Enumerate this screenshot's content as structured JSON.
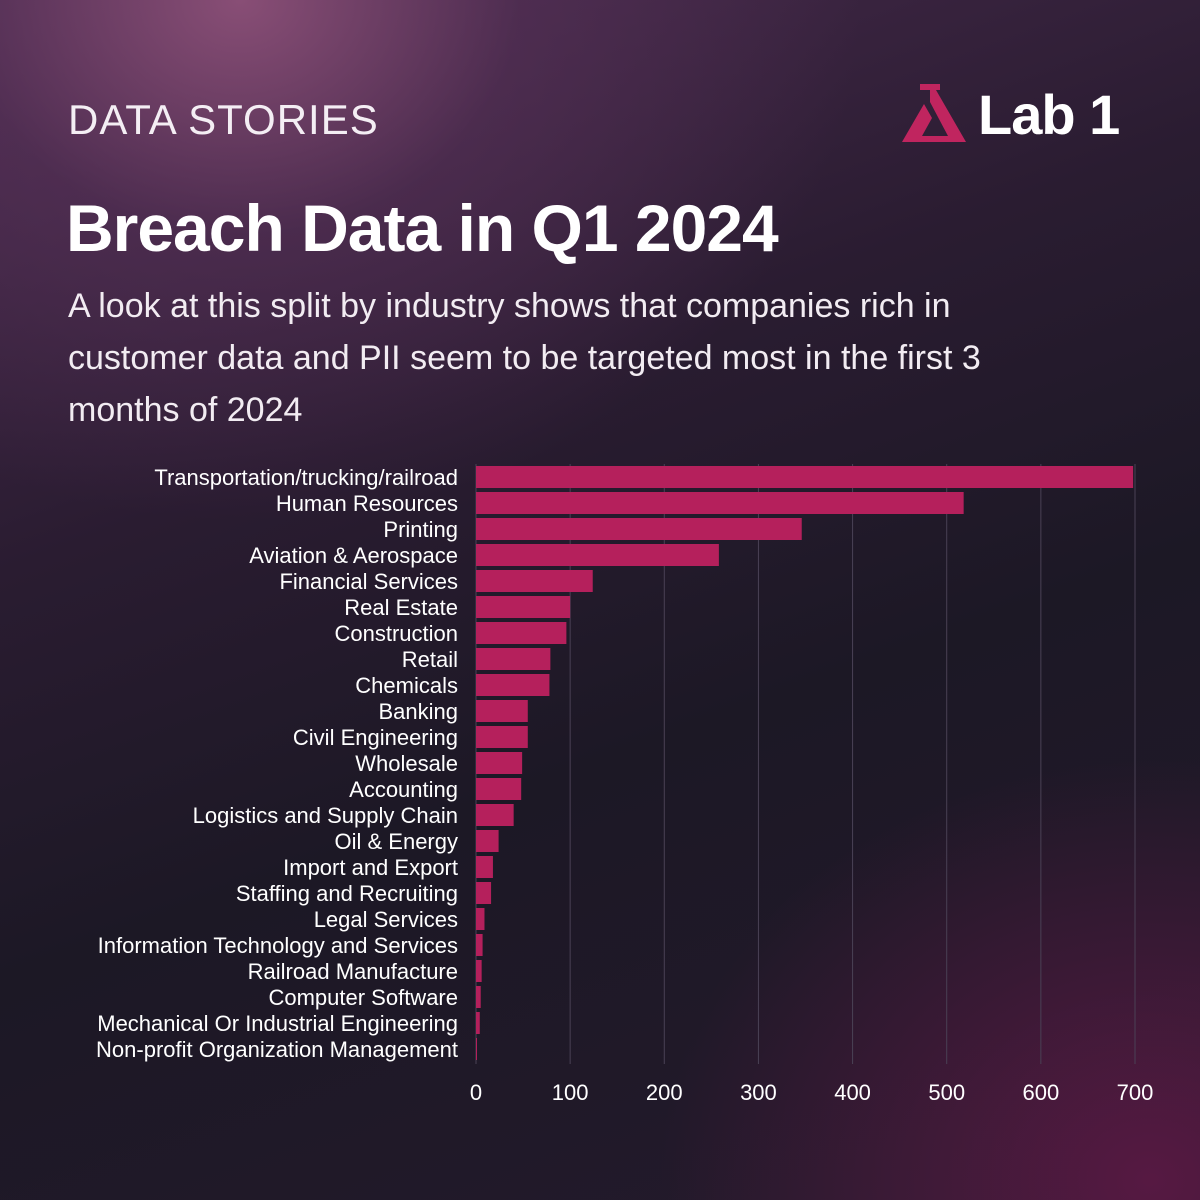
{
  "header": {
    "kicker": "DATA STORIES",
    "brand": "Lab 1",
    "title": "Breach Data in Q1 2024",
    "subtitle": "A look at this split by industry shows that companies rich in customer data and PII seem to be targeted most in the first 3 months of 2024"
  },
  "colors": {
    "bar": "#b5205c",
    "logo_accent": "#c0255f",
    "grid": "#4a4155"
  },
  "chart_data": {
    "type": "bar",
    "orientation": "horizontal",
    "title": "Breach Data in Q1 2024",
    "xlabel": "",
    "ylabel": "",
    "xlim": [
      0,
      700
    ],
    "ticks": [
      0,
      100,
      200,
      300,
      400,
      500,
      600,
      700
    ],
    "grid": true,
    "categories": [
      "Transportation/trucking/railroad",
      "Human Resources",
      "Printing",
      "Aviation & Aerospace",
      "Financial Services",
      "Real Estate",
      "Construction",
      "Retail",
      "Chemicals",
      "Banking",
      "Civil Engineering",
      "Wholesale",
      "Accounting",
      "Logistics and Supply Chain",
      "Oil & Energy",
      "Import and Export",
      "Staffing and Recruiting",
      "Legal Services",
      "Information Technology and Services",
      "Railroad Manufacture",
      "Computer Software",
      "Mechanical Or Industrial Engineering",
      "Non-profit Organization Management"
    ],
    "values": [
      698,
      518,
      346,
      258,
      124,
      100,
      96,
      79,
      78,
      55,
      55,
      49,
      48,
      40,
      24,
      18,
      16,
      9,
      7,
      6,
      5,
      4,
      1
    ]
  }
}
